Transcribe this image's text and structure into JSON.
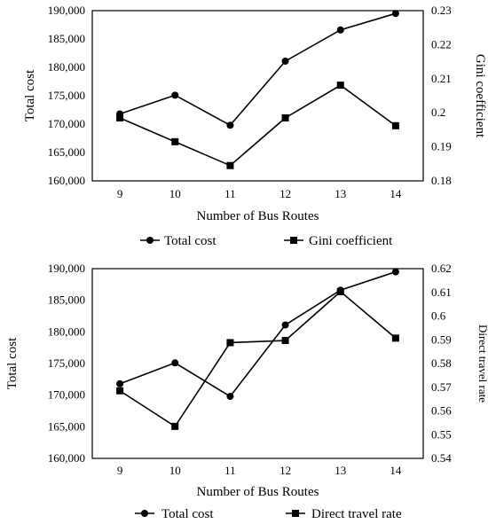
{
  "chart_data": [
    {
      "type": "line",
      "x": [
        9,
        10,
        11,
        12,
        13,
        14
      ],
      "xlabel": "Number of Bus Routes",
      "ylabel_left": "Total cost",
      "ylabel_right": "Gini coefficient",
      "ylim_left": [
        160000,
        190000
      ],
      "yticks_left": [
        "160,000",
        "165,000",
        "170,000",
        "175,000",
        "180,000",
        "185,000",
        "190,000"
      ],
      "ylim_right": [
        0.18,
        0.23
      ],
      "yticks_right": [
        "0.18",
        "0.19",
        "0.2",
        "0.21",
        "0.22",
        "0.23"
      ],
      "series": [
        {
          "name": "Total cost",
          "axis": "left",
          "marker": "circle",
          "values": [
            171800,
            175100,
            169800,
            181100,
            186600,
            189500
          ]
        },
        {
          "name": "Gini coefficient",
          "axis": "right",
          "marker": "square",
          "values": [
            0.1985,
            0.1915,
            0.1845,
            0.1985,
            0.2081,
            0.1962
          ]
        }
      ],
      "legend_position": "bottom",
      "grid": false
    },
    {
      "type": "line",
      "x": [
        9,
        10,
        11,
        12,
        13,
        14
      ],
      "xlabel": "Number of Bus Routes",
      "ylabel_left": "Total cost",
      "ylabel_right": "Direct travel rate",
      "ylim_left": [
        160000,
        190000
      ],
      "yticks_left": [
        "160,000",
        "165,000",
        "170,000",
        "175,000",
        "180,000",
        "185,000",
        "190,000"
      ],
      "ylim_right": [
        0.54,
        0.62
      ],
      "yticks_right": [
        "0.54",
        "0.55",
        "0.56",
        "0.57",
        "0.58",
        "0.59",
        "0.6",
        "0.61",
        "0.62"
      ],
      "series": [
        {
          "name": "Total cost",
          "axis": "left",
          "marker": "circle",
          "values": [
            171800,
            175100,
            169800,
            181100,
            186600,
            189500
          ]
        },
        {
          "name": "Direct travel rate",
          "axis": "right",
          "marker": "square",
          "values": [
            0.5685,
            0.5535,
            0.5888,
            0.5897,
            0.6103,
            0.5907
          ]
        }
      ],
      "legend_position": "bottom",
      "grid": false
    }
  ]
}
